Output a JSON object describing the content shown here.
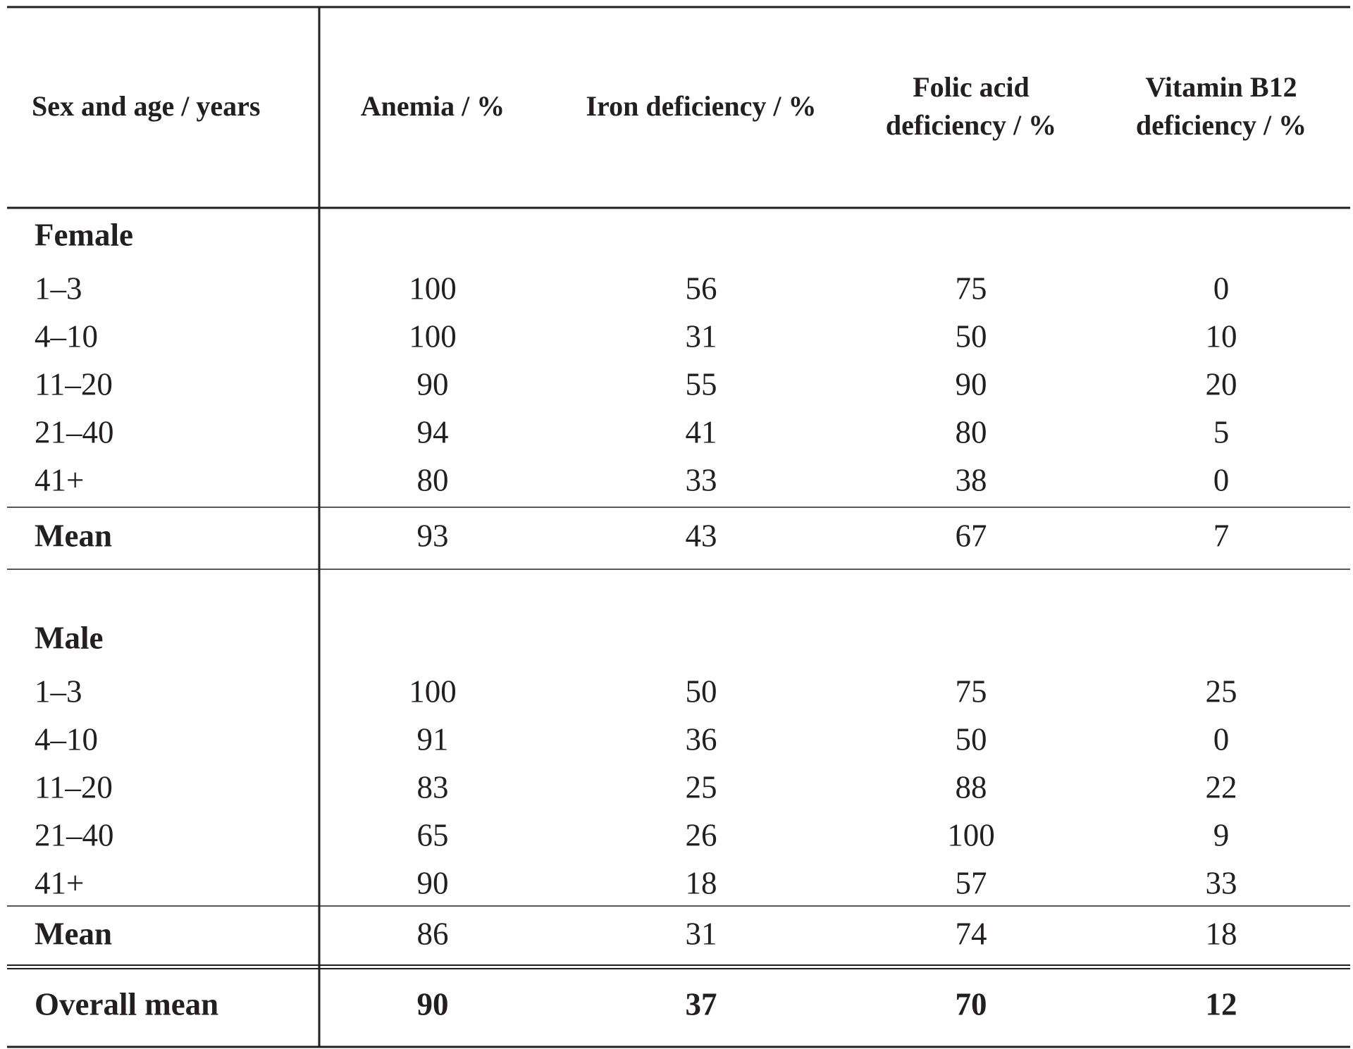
{
  "table": {
    "header": [
      [
        "Sex and age / years"
      ],
      [
        "Anemia / %"
      ],
      [
        "Iron deficiency / %"
      ],
      [
        "Folic acid",
        "deficiency / %"
      ],
      [
        "Vitamin B12",
        "deficiency / %"
      ]
    ],
    "groups": [
      {
        "label": "Female",
        "rows": [
          [
            "1–3",
            100,
            56,
            75,
            0
          ],
          [
            "4–10",
            100,
            31,
            50,
            10
          ],
          [
            "11–20",
            90,
            55,
            90,
            20
          ],
          [
            "21–40",
            94,
            41,
            80,
            5
          ],
          [
            "41+",
            80,
            33,
            38,
            0
          ]
        ],
        "mean": [
          "Mean",
          93,
          43,
          67,
          7
        ]
      },
      {
        "label": "Male",
        "rows": [
          [
            "1–3",
            100,
            50,
            75,
            25
          ],
          [
            "4–10",
            91,
            36,
            50,
            0
          ],
          [
            "11–20",
            83,
            25,
            88,
            22
          ],
          [
            "21–40",
            65,
            26,
            100,
            9
          ],
          [
            "41+",
            90,
            18,
            57,
            33
          ]
        ],
        "mean": [
          "Mean",
          86,
          31,
          74,
          18
        ]
      }
    ],
    "overall": [
      "Overall mean",
      90,
      37,
      70,
      12
    ]
  }
}
